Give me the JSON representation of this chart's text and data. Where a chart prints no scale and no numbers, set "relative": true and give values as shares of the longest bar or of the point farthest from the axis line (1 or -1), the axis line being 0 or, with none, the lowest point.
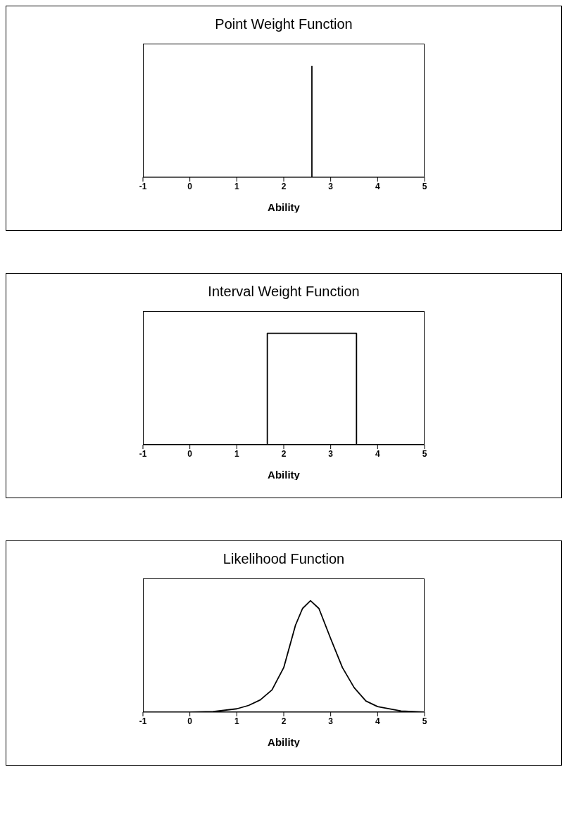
{
  "chart_data": [
    {
      "type": "line",
      "title": "Point Weight Function",
      "xlabel": "Ability",
      "relative": true,
      "xlim": [
        -1,
        5
      ],
      "xticks": [
        -1,
        0,
        1,
        2,
        3,
        4,
        5
      ],
      "tick_labels": "x",
      "marker": "none",
      "line_style": "solid",
      "legend": false,
      "grid": false,
      "series": [
        {
          "color": "#000000",
          "x": [
            2.6,
            2.6
          ],
          "values": [
            0,
            1
          ]
        }
      ]
    },
    {
      "type": "step",
      "title": "Interval Weight Function",
      "xlabel": "Ability",
      "relative": true,
      "xlim": [
        -1,
        5
      ],
      "xticks": [
        -1,
        0,
        1,
        2,
        3,
        4,
        5
      ],
      "tick_labels": "x",
      "marker": "none",
      "line_style": "solid",
      "legend": false,
      "grid": false,
      "series": [
        {
          "color": "#000000",
          "x": [
            -1,
            1.65,
            3.55,
            5
          ],
          "values": [
            0,
            1,
            0,
            0
          ]
        }
      ]
    },
    {
      "type": "line",
      "title": "Likelihood Function",
      "xlabel": "Ability",
      "relative": true,
      "xlim": [
        -1,
        5
      ],
      "xticks": [
        -1,
        0,
        1,
        2,
        3,
        4,
        5
      ],
      "tick_labels": "x",
      "marker": "none",
      "line_style": "solid",
      "legend": false,
      "grid": false,
      "series": [
        {
          "color": "#000000",
          "x": [
            -1,
            0,
            0.5,
            1,
            1.25,
            1.5,
            1.75,
            2,
            2.25,
            2.4,
            2.57,
            2.75,
            3,
            3.25,
            3.5,
            3.75,
            4,
            4.5,
            5
          ],
          "values": [
            0,
            0,
            0.005,
            0.03,
            0.06,
            0.11,
            0.2,
            0.4,
            0.78,
            0.93,
            1,
            0.93,
            0.66,
            0.4,
            0.22,
            0.1,
            0.05,
            0.01,
            0
          ]
        }
      ]
    }
  ]
}
